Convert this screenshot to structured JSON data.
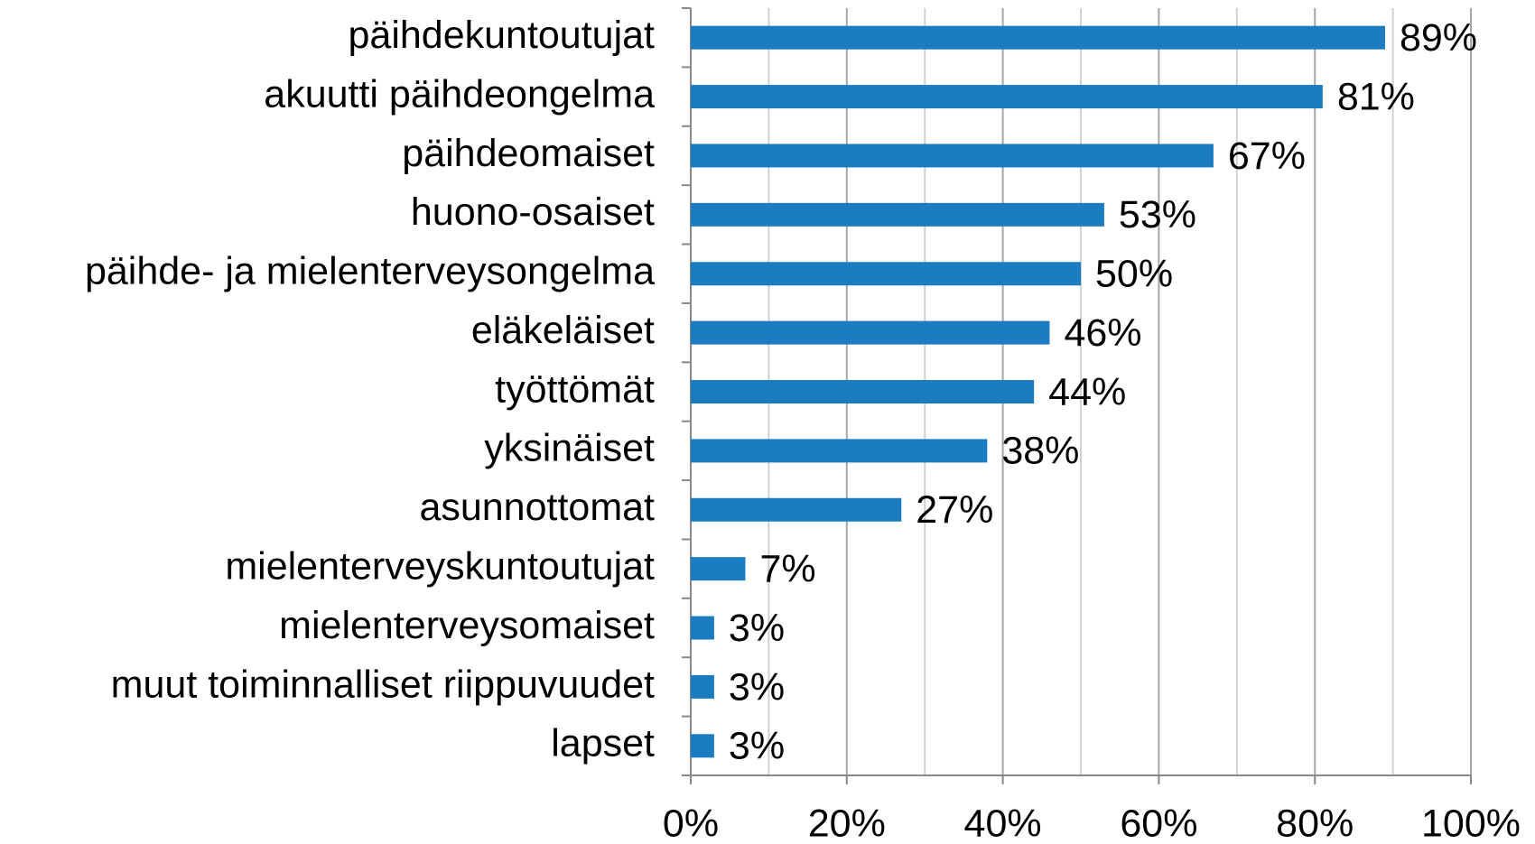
{
  "chart_data": {
    "type": "bar",
    "orientation": "horizontal",
    "categories": [
      "päihdekuntoutujat",
      "akuutti päihdeongelma",
      "päihdeomaiset",
      "huono-osaiset",
      "päihde- ja mielenterveysongelma",
      "eläkeläiset",
      "työttömät",
      "yksinäiset",
      "asunnottomat",
      "mielenterveyskuntoutujat",
      "mielenterveysomaiset",
      "muut toiminnalliset riippuvuudet",
      "lapset"
    ],
    "values": [
      89,
      81,
      67,
      53,
      50,
      46,
      44,
      38,
      27,
      7,
      3,
      3,
      3
    ],
    "value_labels": [
      "89%",
      "81%",
      "67%",
      "53%",
      "50%",
      "46%",
      "44%",
      "38%",
      "27%",
      "7%",
      "3%",
      "3%",
      "3%"
    ],
    "color": "#1b7cc1",
    "xlim": [
      0,
      100
    ],
    "xticks": [
      {
        "value": 0,
        "label": "0%"
      },
      {
        "value": 20,
        "label": "20%"
      },
      {
        "value": 40,
        "label": "40%"
      },
      {
        "value": 60,
        "label": "60%"
      },
      {
        "value": 80,
        "label": "80%"
      },
      {
        "value": 100,
        "label": "100%"
      }
    ],
    "grid": true
  }
}
